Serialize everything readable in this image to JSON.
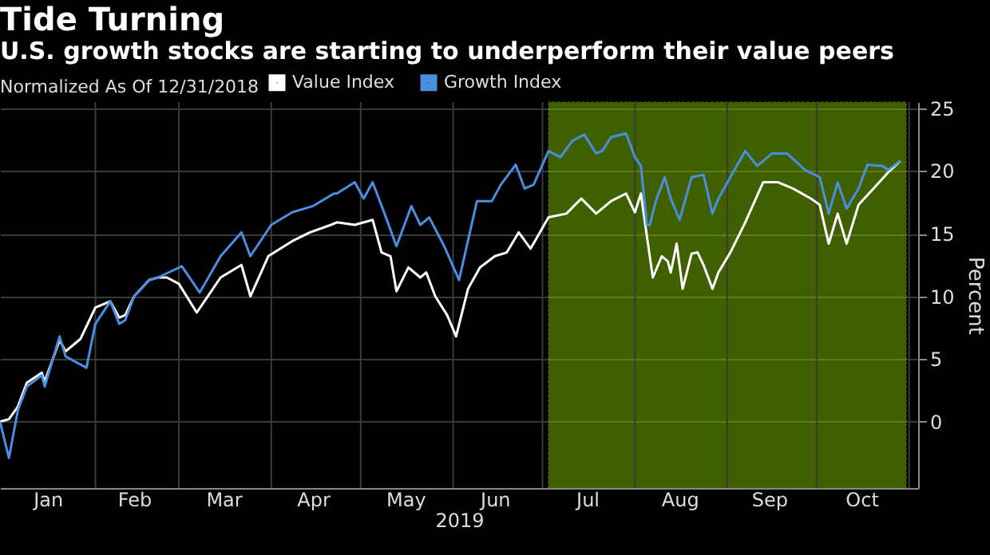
{
  "chart_data": {
    "type": "line",
    "title": "Tide Turning",
    "subtitle": "U.S. growth stocks are starting to underperform their value peers",
    "legend_title": "Normalized As Of 12/31/2018",
    "xlabel": "2019",
    "ylabel": "Percent",
    "xlim": [
      "2018-12-31",
      "2019-11-04"
    ],
    "xticks": [
      {
        "value": "2019-02-01",
        "label": null
      },
      {
        "value": "2019-03-01",
        "label": null
      },
      {
        "value": "2019-04-01",
        "label": null
      },
      {
        "value": "2019-05-01",
        "label": null
      },
      {
        "value": "2019-06-01",
        "label": null
      },
      {
        "value": "2019-07-01",
        "label": null
      },
      {
        "value": "2019-08-01",
        "label": null
      },
      {
        "value": "2019-09-01",
        "label": null
      },
      {
        "value": "2019-10-01",
        "label": null
      },
      {
        "value": "2019-11-01",
        "label": null
      },
      {
        "value": "2019-01-16",
        "label": "Jan"
      },
      {
        "value": "2019-02-14",
        "label": "Feb"
      },
      {
        "value": "2019-03-16",
        "label": "Mar"
      },
      {
        "value": "2019-04-15",
        "label": "Apr"
      },
      {
        "value": "2019-05-16",
        "label": "May"
      },
      {
        "value": "2019-06-15",
        "label": "Jun"
      },
      {
        "value": "2019-07-16",
        "label": "Jul"
      },
      {
        "value": "2019-08-16",
        "label": "Aug"
      },
      {
        "value": "2019-09-15",
        "label": "Sep"
      },
      {
        "value": "2019-10-16",
        "label": "Oct"
      }
    ],
    "ylim": [
      -5.3,
      25.5
    ],
    "yticks": [
      0,
      5,
      10,
      15,
      20,
      25
    ],
    "grid": true,
    "legend": "top left",
    "bands": [
      {
        "axis": "x",
        "from": "2019-07-03",
        "to": "2019-10-31",
        "color": "#80c000"
      }
    ],
    "series": [
      {
        "name": "Value Index",
        "color": "#ffffff",
        "x": [
          "2018-12-31",
          "2019-01-03",
          "2019-01-06",
          "2019-01-09",
          "2019-01-14",
          "2019-01-15",
          "2019-01-20",
          "2019-01-22",
          "2019-01-27",
          "2019-02-01",
          "2019-02-06",
          "2019-02-09",
          "2019-02-11",
          "2019-02-14",
          "2019-02-19",
          "2019-02-22",
          "2019-02-25",
          "2019-03-01",
          "2019-03-07",
          "2019-03-15",
          "2019-03-22",
          "2019-03-25",
          "2019-03-31",
          "2019-04-08",
          "2019-04-14",
          "2019-04-21",
          "2019-04-23",
          "2019-04-29",
          "2019-05-05",
          "2019-05-08",
          "2019-05-11",
          "2019-05-13",
          "2019-05-17",
          "2019-05-21",
          "2019-05-23",
          "2019-05-26",
          "2019-05-30",
          "2019-06-02",
          "2019-06-06",
          "2019-06-10",
          "2019-06-15",
          "2019-06-19",
          "2019-06-23",
          "2019-06-27",
          "2019-07-03",
          "2019-07-09",
          "2019-07-14",
          "2019-07-19",
          "2019-07-24",
          "2019-07-29",
          "2019-08-01",
          "2019-08-03",
          "2019-08-05",
          "2019-08-07",
          "2019-08-10",
          "2019-08-12",
          "2019-08-13",
          "2019-08-15",
          "2019-08-17",
          "2019-08-20",
          "2019-08-22",
          "2019-08-24",
          "2019-08-27",
          "2019-08-29",
          "2019-09-02",
          "2019-09-07",
          "2019-09-13",
          "2019-09-18",
          "2019-09-23",
          "2019-09-29",
          "2019-10-02",
          "2019-10-05",
          "2019-10-08",
          "2019-10-11",
          "2019-10-15",
          "2019-10-20",
          "2019-10-25",
          "2019-10-29"
        ],
        "values": [
          0,
          0.2,
          1.2,
          3.1,
          3.9,
          3.2,
          6.5,
          5.6,
          6.6,
          9.1,
          9.6,
          8.3,
          8.5,
          10.0,
          11.3,
          11.5,
          11.5,
          11.0,
          8.7,
          11.5,
          12.5,
          10.0,
          13.2,
          14.4,
          15.1,
          15.7,
          15.9,
          15.7,
          16.1,
          13.5,
          13.2,
          10.4,
          12.3,
          11.5,
          11.9,
          10.0,
          8.5,
          6.8,
          10.6,
          12.3,
          13.2,
          13.5,
          15.1,
          13.8,
          16.3,
          16.6,
          17.8,
          16.6,
          17.6,
          18.2,
          16.7,
          18.2,
          14.8,
          11.5,
          13.2,
          12.8,
          11.9,
          14.2,
          10.6,
          13.4,
          13.5,
          12.5,
          10.6,
          11.9,
          13.5,
          15.9,
          19.1,
          19.1,
          18.6,
          17.8,
          17.3,
          14.2,
          16.6,
          14.2,
          17.3,
          18.6,
          19.9,
          20.8
        ]
      },
      {
        "name": "Growth Index",
        "color": "#4a8fdf",
        "x": [
          "2018-12-31",
          "2019-01-03",
          "2019-01-06",
          "2019-01-09",
          "2019-01-14",
          "2019-01-15",
          "2019-01-20",
          "2019-01-22",
          "2019-01-29",
          "2019-02-01",
          "2019-02-06",
          "2019-02-09",
          "2019-02-11",
          "2019-02-14",
          "2019-02-19",
          "2019-02-22",
          "2019-03-02",
          "2019-03-08",
          "2019-03-15",
          "2019-03-22",
          "2019-03-25",
          "2019-04-01",
          "2019-04-08",
          "2019-04-15",
          "2019-04-22",
          "2019-04-23",
          "2019-04-29",
          "2019-05-02",
          "2019-05-05",
          "2019-05-09",
          "2019-05-13",
          "2019-05-18",
          "2019-05-21",
          "2019-05-24",
          "2019-05-29",
          "2019-06-03",
          "2019-06-09",
          "2019-06-14",
          "2019-06-17",
          "2019-06-22",
          "2019-06-25",
          "2019-06-28",
          "2019-07-03",
          "2019-07-07",
          "2019-07-11",
          "2019-07-15",
          "2019-07-19",
          "2019-07-21",
          "2019-07-24",
          "2019-07-29",
          "2019-08-01",
          "2019-08-03",
          "2019-08-05",
          "2019-08-06",
          "2019-08-08",
          "2019-08-11",
          "2019-08-13",
          "2019-08-16",
          "2019-08-20",
          "2019-08-24",
          "2019-08-27",
          "2019-08-29",
          "2019-09-02",
          "2019-09-07",
          "2019-09-11",
          "2019-09-16",
          "2019-09-21",
          "2019-09-27",
          "2019-10-02",
          "2019-10-05",
          "2019-10-08",
          "2019-10-11",
          "2019-10-15",
          "2019-10-18",
          "2019-10-23",
          "2019-10-25",
          "2019-10-29"
        ],
        "values": [
          0,
          -2.9,
          0.9,
          2.8,
          3.7,
          2.8,
          6.8,
          5.2,
          4.3,
          7.8,
          9.6,
          7.8,
          8.1,
          10.0,
          11.3,
          11.5,
          12.4,
          10.3,
          13.2,
          15.1,
          13.2,
          15.7,
          16.7,
          17.2,
          18.2,
          18.2,
          19.1,
          17.8,
          19.1,
          16.6,
          14.0,
          17.2,
          15.7,
          16.3,
          14.0,
          11.3,
          17.6,
          17.6,
          18.9,
          20.5,
          18.6,
          18.9,
          21.6,
          21.1,
          22.4,
          22.9,
          21.4,
          21.6,
          22.7,
          23.0,
          21.1,
          20.4,
          15.7,
          15.7,
          17.6,
          19.5,
          17.8,
          16.1,
          19.5,
          19.7,
          16.6,
          17.8,
          19.5,
          21.6,
          20.4,
          21.4,
          21.4,
          20.1,
          19.5,
          16.6,
          19.1,
          17.0,
          18.6,
          20.5,
          20.4,
          20.1,
          20.8
        ]
      }
    ]
  }
}
